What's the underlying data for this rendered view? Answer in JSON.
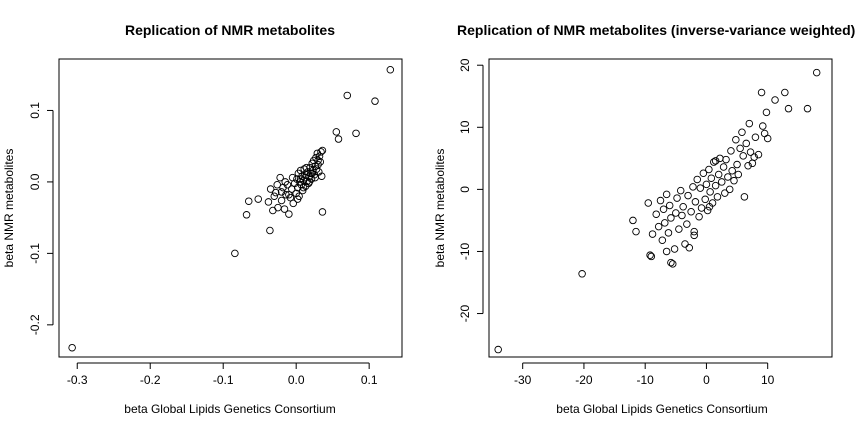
{
  "chart_data": [
    {
      "type": "scatter",
      "title": "Replication of NMR metabolites",
      "xlabel": "beta Global Lipids Genetics Consortium",
      "ylabel": "beta NMR metabolites",
      "xlim": [
        -0.325,
        0.145
      ],
      "ylim": [
        -0.245,
        0.172
      ],
      "xticks": [
        -0.3,
        -0.2,
        -0.1,
        0.0,
        0.1
      ],
      "xtick_labels": [
        "-0.3",
        "-0.2",
        "-0.1",
        "0.0",
        "0.1"
      ],
      "yticks": [
        -0.2,
        -0.1,
        0.0,
        0.1
      ],
      "ytick_labels": [
        "-0.2",
        "-0.1",
        "0.0",
        "0.1"
      ],
      "grid": false,
      "marker": "open-circle",
      "points": [
        [
          -0.307,
          -0.232
        ],
        [
          -0.084,
          -0.1
        ],
        [
          -0.068,
          -0.046
        ],
        [
          -0.065,
          -0.027
        ],
        [
          -0.052,
          -0.024
        ],
        [
          -0.036,
          -0.068
        ],
        [
          -0.038,
          -0.028
        ],
        [
          -0.035,
          -0.01
        ],
        [
          -0.032,
          -0.04
        ],
        [
          -0.03,
          -0.02
        ],
        [
          -0.028,
          -0.015
        ],
        [
          -0.025,
          -0.036
        ],
        [
          -0.022,
          0.006
        ],
        [
          -0.02,
          -0.026
        ],
        [
          -0.018,
          -0.008
        ],
        [
          -0.016,
          -0.038
        ],
        [
          -0.014,
          -0.018
        ],
        [
          -0.012,
          -0.004
        ],
        [
          -0.01,
          -0.045
        ],
        [
          -0.008,
          -0.022
        ],
        [
          -0.006,
          -0.01
        ],
        [
          -0.004,
          -0.03
        ],
        [
          -0.002,
          -0.002
        ],
        [
          0.0,
          -0.016
        ],
        [
          0.001,
          0.004
        ],
        [
          0.002,
          -0.008
        ],
        [
          0.003,
          0.012
        ],
        [
          0.004,
          -0.02
        ],
        [
          0.005,
          0.0
        ],
        [
          0.006,
          0.016
        ],
        [
          0.007,
          -0.004
        ],
        [
          0.008,
          0.008
        ],
        [
          0.009,
          -0.012
        ],
        [
          0.01,
          0.002
        ],
        [
          0.011,
          0.018
        ],
        [
          0.012,
          0.006
        ],
        [
          0.013,
          -0.006
        ],
        [
          0.014,
          0.01
        ],
        [
          0.015,
          0.001
        ],
        [
          0.016,
          0.014
        ],
        [
          0.017,
          -0.002
        ],
        [
          0.018,
          0.008
        ],
        [
          0.019,
          0.02
        ],
        [
          0.02,
          0.012
        ],
        [
          0.021,
          0.004
        ],
        [
          0.022,
          0.026
        ],
        [
          0.023,
          0.016
        ],
        [
          0.024,
          0.03
        ],
        [
          0.025,
          0.01
        ],
        [
          0.026,
          0.022
        ],
        [
          0.027,
          0.034
        ],
        [
          0.028,
          0.018
        ],
        [
          0.029,
          0.04
        ],
        [
          0.03,
          0.024
        ],
        [
          0.031,
          0.014
        ],
        [
          0.032,
          0.036
        ],
        [
          0.033,
          0.028
        ],
        [
          0.034,
          0.042
        ],
        [
          0.035,
          0.008
        ],
        [
          0.036,
          0.044
        ],
        [
          -0.026,
          -0.004
        ],
        [
          -0.02,
          -0.014
        ],
        [
          -0.015,
          0.0
        ],
        [
          -0.01,
          -0.018
        ],
        [
          -0.005,
          0.006
        ],
        [
          0.002,
          -0.024
        ],
        [
          0.006,
          0.004
        ],
        [
          0.01,
          -0.008
        ],
        [
          0.014,
          0.02
        ],
        [
          0.018,
          0.0
        ],
        [
          0.022,
          0.012
        ],
        [
          0.026,
          0.006
        ],
        [
          0.03,
          0.03
        ],
        [
          0.036,
          -0.042
        ],
        [
          0.055,
          0.07
        ],
        [
          0.058,
          0.06
        ],
        [
          0.07,
          0.121
        ],
        [
          0.082,
          0.068
        ],
        [
          0.108,
          0.113
        ],
        [
          0.129,
          0.157
        ]
      ]
    },
    {
      "type": "scatter",
      "title": "Replication of NMR metabolites (inverse-variance weighted)",
      "xlabel": "beta Global Lipids Genetics Consortium",
      "ylabel": "beta NMR metabolites",
      "xlim": [
        -35.5,
        20.5
      ],
      "ylim": [
        -27.0,
        21.0
      ],
      "xticks": [
        -30,
        -20,
        -10,
        0,
        10
      ],
      "xtick_labels": [
        "-30",
        "-20",
        "-10",
        "0",
        "10"
      ],
      "yticks": [
        -20,
        -10,
        0,
        10,
        20
      ],
      "ytick_labels": [
        "-20",
        "-10",
        "0",
        "10",
        "20"
      ],
      "grid": false,
      "marker": "open-circle",
      "points": [
        [
          -34.0,
          -25.8
        ],
        [
          -20.3,
          -13.6
        ],
        [
          -12.0,
          -5.0
        ],
        [
          -11.5,
          -6.8
        ],
        [
          -9.5,
          -2.2
        ],
        [
          -9.0,
          -10.8
        ],
        [
          -8.8,
          -7.2
        ],
        [
          -8.2,
          -4.0
        ],
        [
          -7.8,
          -6.0
        ],
        [
          -7.5,
          -1.8
        ],
        [
          -7.2,
          -8.2
        ],
        [
          -7.0,
          -3.2
        ],
        [
          -6.8,
          -5.4
        ],
        [
          -6.5,
          -0.8
        ],
        [
          -6.2,
          -7.0
        ],
        [
          -6.0,
          -2.6
        ],
        [
          -5.8,
          -4.6
        ],
        [
          -5.5,
          -12.0
        ],
        [
          -5.2,
          -9.6
        ],
        [
          -5.0,
          -3.8
        ],
        [
          -4.8,
          -1.4
        ],
        [
          -4.5,
          -6.4
        ],
        [
          -4.2,
          -0.2
        ],
        [
          -4.0,
          -4.2
        ],
        [
          -3.8,
          -2.8
        ],
        [
          -3.5,
          -8.8
        ],
        [
          -3.2,
          -5.6
        ],
        [
          -3.0,
          -1.0
        ],
        [
          -2.8,
          -9.4
        ],
        [
          -2.5,
          -3.6
        ],
        [
          -2.2,
          0.4
        ],
        [
          -2.0,
          -6.8
        ],
        [
          -1.8,
          -2.0
        ],
        [
          -1.5,
          1.6
        ],
        [
          -1.2,
          -4.4
        ],
        [
          -1.0,
          0.2
        ],
        [
          -0.8,
          -3.0
        ],
        [
          -0.5,
          2.6
        ],
        [
          -0.2,
          -1.6
        ],
        [
          0.0,
          0.8
        ],
        [
          0.2,
          -3.4
        ],
        [
          0.4,
          3.2
        ],
        [
          0.6,
          -0.4
        ],
        [
          0.8,
          1.8
        ],
        [
          1.0,
          -2.2
        ],
        [
          1.2,
          4.4
        ],
        [
          1.5,
          0.6
        ],
        [
          1.8,
          -1.2
        ],
        [
          2.0,
          2.4
        ],
        [
          2.2,
          5.0
        ],
        [
          2.5,
          1.2
        ],
        [
          2.8,
          3.6
        ],
        [
          3.0,
          -0.6
        ],
        [
          3.2,
          4.8
        ],
        [
          3.5,
          2.0
        ],
        [
          3.8,
          0.0
        ],
        [
          4.0,
          6.2
        ],
        [
          4.2,
          3.0
        ],
        [
          4.5,
          1.4
        ],
        [
          4.8,
          8.0
        ],
        [
          5.0,
          4.0
        ],
        [
          5.2,
          2.4
        ],
        [
          5.5,
          6.6
        ],
        [
          5.8,
          9.2
        ],
        [
          6.0,
          5.4
        ],
        [
          6.2,
          -1.2
        ],
        [
          6.5,
          7.4
        ],
        [
          6.8,
          3.8
        ],
        [
          7.0,
          10.6
        ],
        [
          7.2,
          6.0
        ],
        [
          7.5,
          4.2
        ],
        [
          7.8,
          5.2
        ],
        [
          8.0,
          8.4
        ],
        [
          8.5,
          5.6
        ],
        [
          9.0,
          15.6
        ],
        [
          9.2,
          10.2
        ],
        [
          9.5,
          9.0
        ],
        [
          9.8,
          12.4
        ],
        [
          10.0,
          8.2
        ],
        [
          11.2,
          14.4
        ],
        [
          12.8,
          15.6
        ],
        [
          13.4,
          13.0
        ],
        [
          16.5,
          13.0
        ],
        [
          18.0,
          18.8
        ],
        [
          -9.2,
          -10.6
        ],
        [
          -6.5,
          -10.0
        ],
        [
          -5.8,
          -11.8
        ],
        [
          -2.0,
          -7.4
        ],
        [
          1.5,
          4.6
        ],
        [
          0.5,
          -2.8
        ]
      ]
    }
  ]
}
